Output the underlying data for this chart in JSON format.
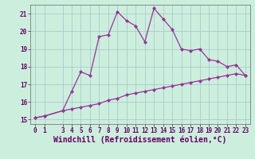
{
  "x": [
    0,
    1,
    3,
    4,
    5,
    6,
    7,
    8,
    9,
    10,
    11,
    12,
    13,
    14,
    15,
    16,
    17,
    18,
    19,
    20,
    21,
    22,
    23
  ],
  "line1": [
    15.1,
    15.2,
    15.5,
    16.6,
    17.7,
    17.5,
    19.7,
    19.8,
    21.1,
    20.6,
    20.3,
    19.4,
    21.3,
    20.7,
    20.1,
    19.0,
    18.9,
    19.0,
    18.4,
    18.3,
    18.0,
    18.1,
    17.5
  ],
  "line2": [
    15.1,
    15.2,
    15.5,
    15.6,
    15.7,
    15.8,
    15.9,
    16.1,
    16.2,
    16.4,
    16.5,
    16.6,
    16.7,
    16.8,
    16.9,
    17.0,
    17.1,
    17.2,
    17.3,
    17.4,
    17.5,
    17.6,
    17.5
  ],
  "line_color": "#993399",
  "bg_color": "#cceedd",
  "grid_color": "#aacccc",
  "xlabel": "Windchill (Refroidissement éolien,°C)",
  "xlim": [
    -0.5,
    23.5
  ],
  "ylim": [
    14.75,
    21.5
  ],
  "yticks": [
    15,
    16,
    17,
    18,
    19,
    20,
    21
  ],
  "xticks": [
    0,
    1,
    3,
    4,
    5,
    6,
    7,
    8,
    9,
    10,
    11,
    12,
    13,
    14,
    15,
    16,
    17,
    18,
    19,
    20,
    21,
    22,
    23
  ],
  "tick_fontsize": 5.5,
  "xlabel_fontsize": 7.0,
  "marker": "D",
  "markersize": 2.0,
  "linewidth": 0.9
}
